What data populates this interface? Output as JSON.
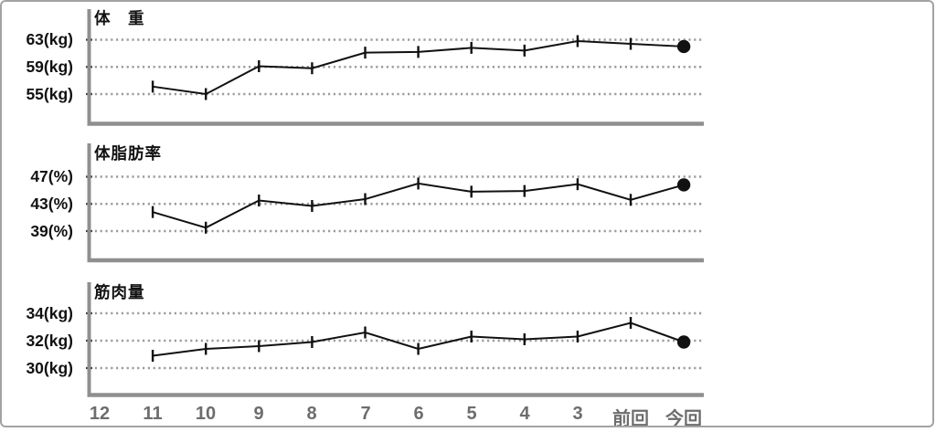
{
  "chart_data": {
    "type": "line",
    "layout": "three stacked subplots sharing one x-axis, plot area left-anchored, right 25% of panel empty",
    "categories": [
      "12",
      "11",
      "10",
      "9",
      "8",
      "7",
      "6",
      "5",
      "4",
      "3",
      "前回",
      "今回"
    ],
    "grid": "horizontal dotted gridlines at each y tick",
    "legend": "none",
    "point_marker": "vertical-tick",
    "latest_point_marker": "filled-circle",
    "charts": [
      {
        "title": "体　重",
        "unit": "kg",
        "y_ticks": [
          "63(kg)",
          "59(kg)",
          "55(kg)"
        ],
        "y_tick_values": [
          63,
          59,
          55
        ],
        "ylim": [
          50.7,
          67.5
        ],
        "values": [
          null,
          56.1,
          55.0,
          59.1,
          58.8,
          61.1,
          61.2,
          61.8,
          61.4,
          62.8,
          62.4,
          62.0
        ]
      },
      {
        "title": "体脂肪率",
        "unit": "%",
        "y_ticks": [
          "47(%)",
          "43(%)",
          "39(%)"
        ],
        "y_tick_values": [
          47,
          43,
          39
        ],
        "ylim": [
          34.7,
          51.9
        ],
        "values": [
          null,
          41.8,
          39.5,
          43.5,
          42.7,
          43.7,
          46.0,
          44.8,
          44.9,
          45.9,
          43.6,
          45.8
        ]
      },
      {
        "title": "筋肉量",
        "unit": "kg",
        "y_ticks": [
          "34(kg)",
          "32(kg)",
          "30(kg)"
        ],
        "y_tick_values": [
          34,
          32,
          30
        ],
        "ylim": [
          28.0,
          36.3
        ],
        "values": [
          null,
          30.9,
          31.4,
          31.6,
          31.9,
          32.6,
          31.4,
          32.3,
          32.1,
          32.3,
          33.3,
          31.9
        ]
      }
    ],
    "colors": {
      "line": "#111111",
      "grid": "#9b9b9b",
      "axis": "#8f8f8f",
      "x_labels": "#6d6d6d",
      "y_labels": "#111111",
      "border": "#a3a3a3"
    }
  }
}
